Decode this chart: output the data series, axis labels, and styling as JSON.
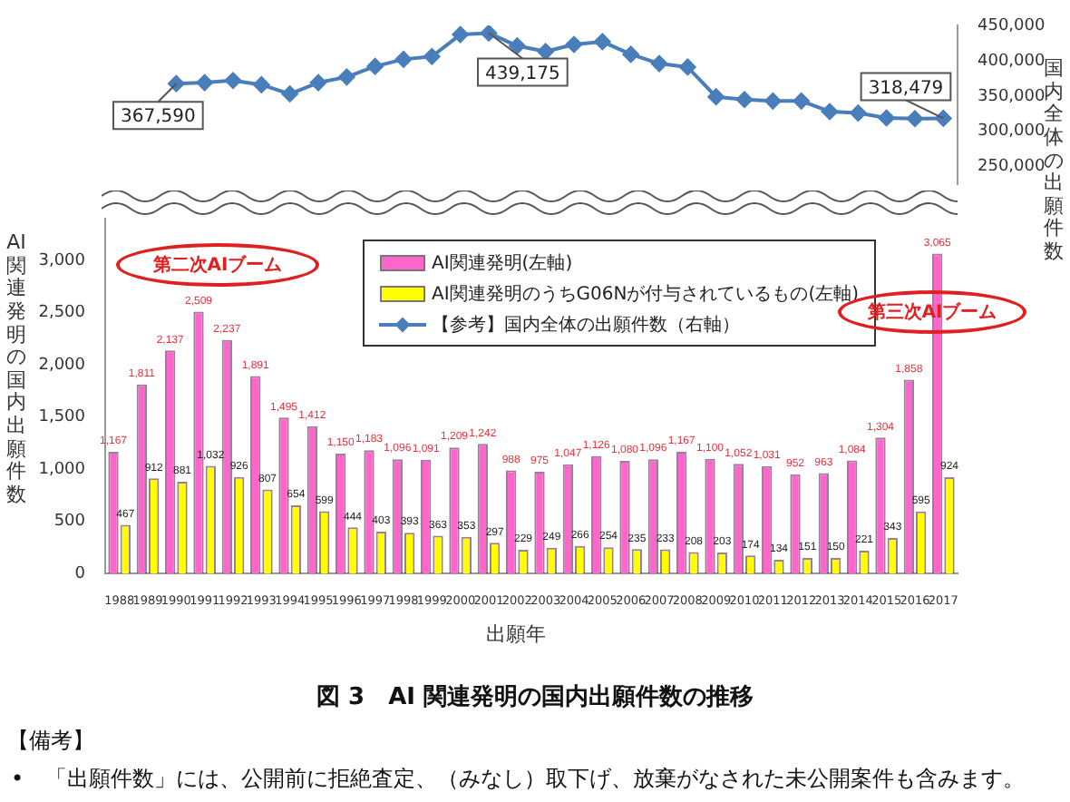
{
  "chart_data": [
    {
      "type": "line",
      "ylabel": "国内全体の出願件数",
      "tick_labels": "y",
      "marker": "diamond",
      "grid": false,
      "categories": [
        "1988",
        "1989",
        "1990",
        "1991",
        "1992",
        "1993",
        "1994",
        "1995",
        "1996",
        "1997",
        "1998",
        "1999",
        "2000",
        "2001",
        "2002",
        "2003",
        "2004",
        "2005",
        "2006",
        "2007",
        "2008",
        "2009",
        "2010",
        "2011",
        "2012",
        "2013",
        "2014",
        "2015",
        "2016",
        "2017"
      ],
      "series": [
        {
          "name": "【参考】国内全体の出願件数（右軸）",
          "color": "#4a7ebb",
          "values": [
            null,
            null,
            367590,
            369000,
            372000,
            366000,
            353000,
            369000,
            377000,
            392000,
            402000,
            406000,
            437000,
            439175,
            421000,
            413000,
            423000,
            427000,
            409000,
            396000,
            391000,
            349000,
            345000,
            343000,
            343000,
            328000,
            326000,
            319000,
            318000,
            318479
          ],
          "value_labels": [
            null,
            null,
            "367,590",
            null,
            null,
            null,
            null,
            null,
            null,
            null,
            null,
            null,
            null,
            "439,175",
            null,
            null,
            null,
            null,
            null,
            null,
            null,
            null,
            null,
            null,
            null,
            null,
            null,
            null,
            null,
            "318,479"
          ]
        }
      ],
      "ylim": [
        225000,
        450000
      ],
      "yticks": [
        {
          "value": 250000,
          "label": "250,000"
        },
        {
          "value": 300000,
          "label": "300,000"
        },
        {
          "value": 350000,
          "label": "350,000"
        },
        {
          "value": 400000,
          "label": "400,000"
        },
        {
          "value": 450000,
          "label": "450,000"
        }
      ]
    },
    {
      "type": "bar",
      "title": "図 3　AI 関連発明の国内出願件数の推移",
      "xlabel": "出願年",
      "ylabel": "AI関連発明の国内出願件数",
      "categories": [
        "1988",
        "1989",
        "1990",
        "1991",
        "1992",
        "1993",
        "1994",
        "1995",
        "1996",
        "1997",
        "1998",
        "1999",
        "2000",
        "2001",
        "2002",
        "2003",
        "2004",
        "2005",
        "2006",
        "2007",
        "2008",
        "2009",
        "2010",
        "2011",
        "2012",
        "2013",
        "2014",
        "2015",
        "2016",
        "2017"
      ],
      "series": [
        {
          "name": "AI関連発明(左軸)",
          "color": "#ff66cc",
          "values": [
            1167,
            1811,
            2137,
            2509,
            2237,
            1891,
            1495,
            1412,
            1150,
            1183,
            1096,
            1091,
            1209,
            1242,
            988,
            975,
            1047,
            1126,
            1080,
            1096,
            1167,
            1100,
            1052,
            1031,
            952,
            963,
            1084,
            1304,
            1858,
            3065
          ],
          "value_labels": [
            "1,167",
            "1,811",
            "2,137",
            "2,509",
            "2,237",
            "1,891",
            "1,495",
            "1,412",
            "1,150",
            "1,183",
            "1,096",
            "1,091",
            "1,209",
            "1,242",
            "988",
            "975",
            "1,047",
            "1,126",
            "1,080",
            "1,096",
            "1,167",
            "1,100",
            "1,052",
            "1,031",
            "952",
            "963",
            "1,084",
            "1,304",
            "1,858",
            "3,065"
          ]
        },
        {
          "name": "AI関連発明のうちG06Nが付与されているもの(左軸)",
          "color": "#ffff00",
          "values": [
            467,
            912,
            881,
            1032,
            926,
            807,
            654,
            599,
            444,
            403,
            393,
            363,
            353,
            297,
            229,
            249,
            266,
            254,
            235,
            233,
            208,
            203,
            174,
            134,
            151,
            150,
            221,
            343,
            595,
            924
          ],
          "value_labels": [
            "467",
            "912",
            "881",
            "1,032",
            "926",
            "807",
            "654",
            "599",
            "444",
            "403",
            "393",
            "363",
            "353",
            "297",
            "229",
            "249",
            "266",
            "254",
            "235",
            "233",
            "208",
            "203",
            "174",
            "134",
            "151",
            "150",
            "221",
            "343",
            "595",
            "924"
          ]
        }
      ],
      "ylim": [
        0,
        3400
      ],
      "yticks": [
        0,
        {
          "value": 500,
          "label": "500"
        },
        {
          "value": 1000,
          "label": "1,000"
        },
        {
          "value": 1500,
          "label": "1,500"
        },
        {
          "value": 2000,
          "label": "2,000"
        },
        {
          "value": 2500,
          "label": "2,500"
        },
        {
          "value": 3000,
          "label": "3,000"
        }
      ],
      "grid": false,
      "legend": "top",
      "annotations": [
        "第二次AIブーム",
        "第三次AIブーム",
        "【備考】",
        "•　「出願件数」には、公開前に拒絶査定、（みなし）取下げ、放棄がなされた未公開案件も含みます。"
      ]
    }
  ]
}
